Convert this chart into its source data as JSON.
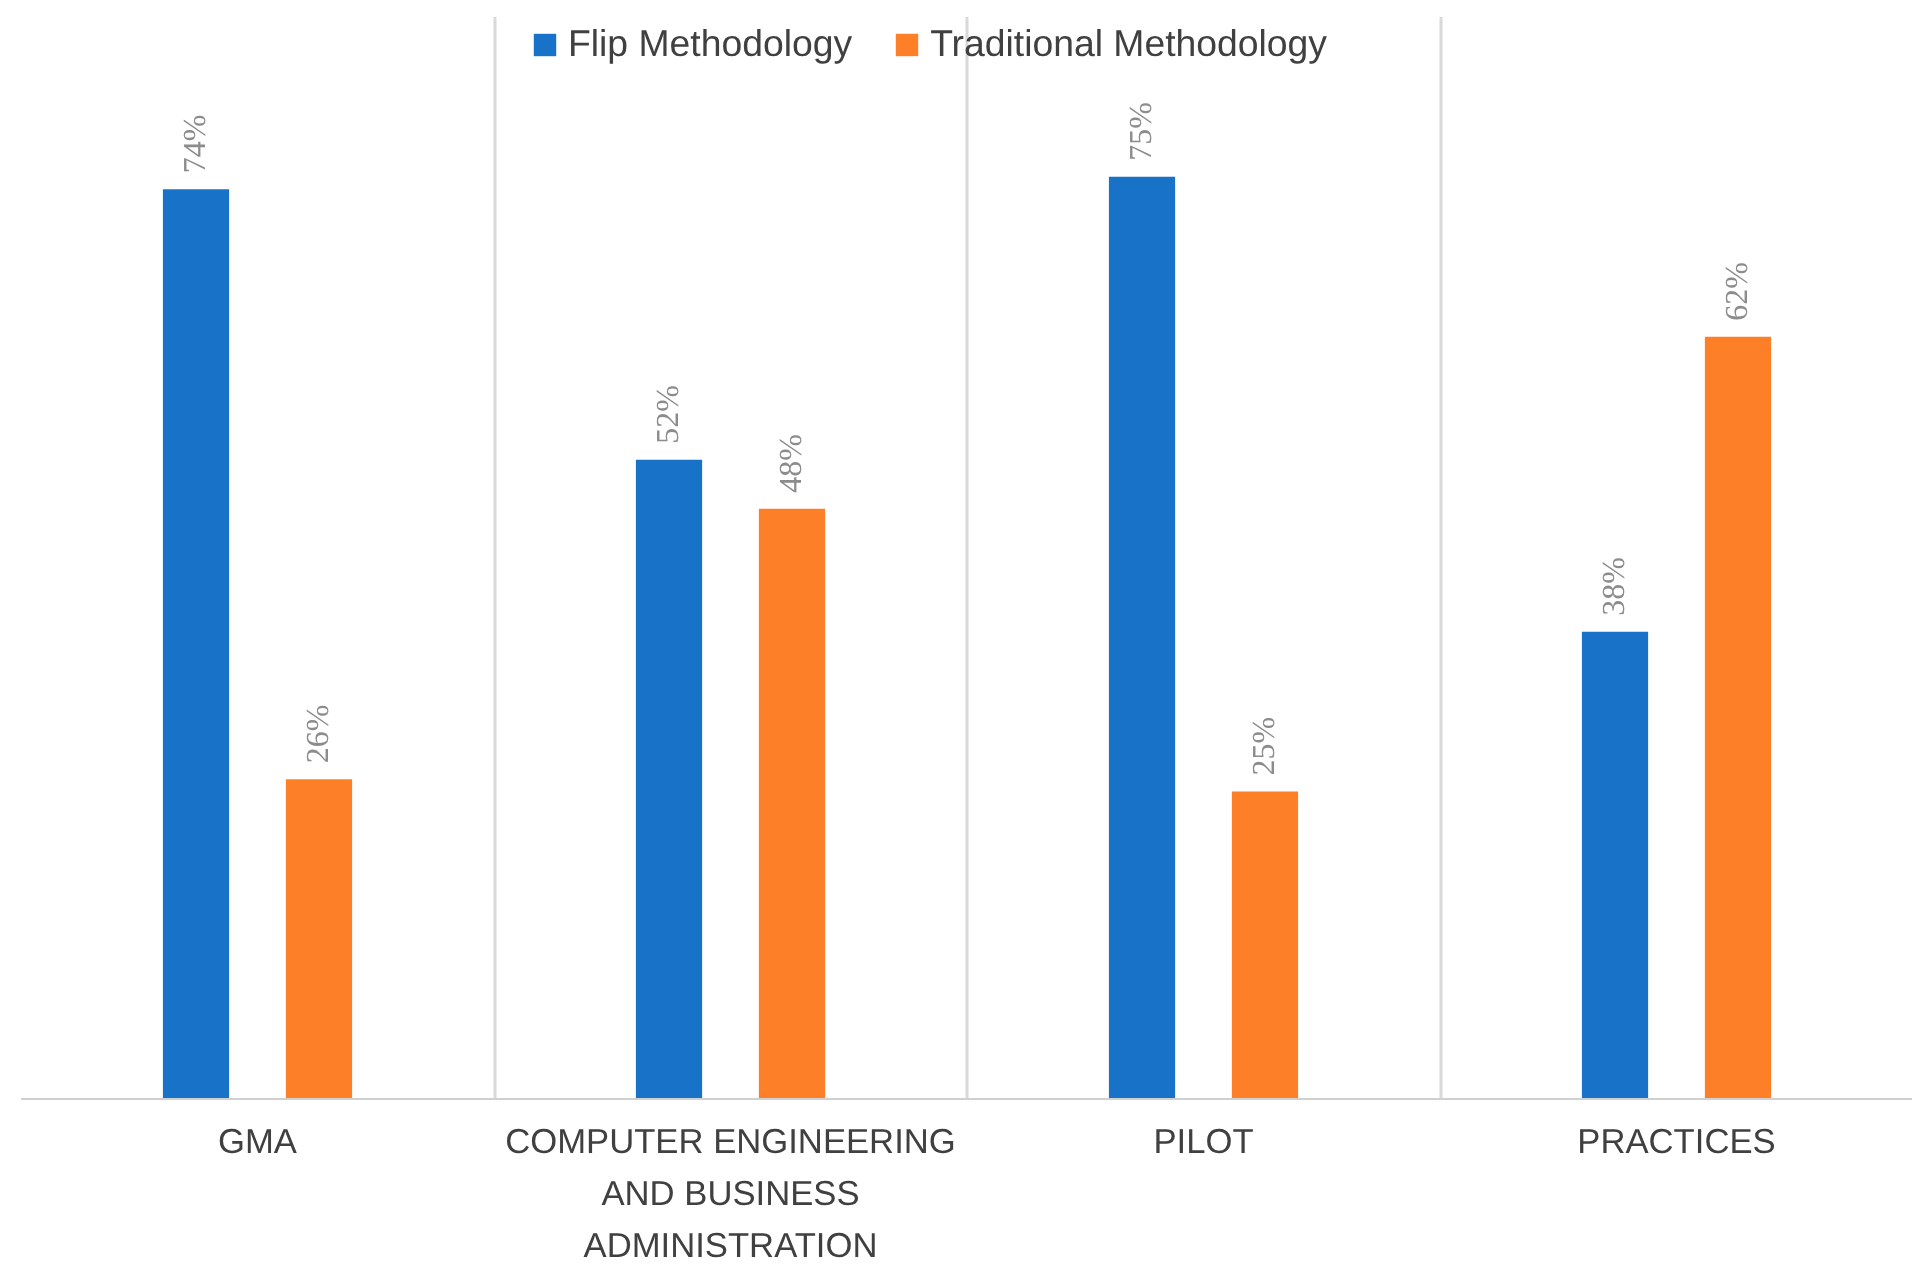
{
  "chart_data": {
    "type": "bar",
    "categories": [
      "GMA",
      "COMPUTER ENGINEERING AND BUSINESS ADMINISTRATION",
      "PILOT",
      "PRACTICES"
    ],
    "series": [
      {
        "name": "Flip Methodology",
        "color": "#1872c8",
        "values": [
          74,
          52,
          75,
          38
        ],
        "value_labels": [
          "74%",
          "52%",
          "75%",
          "38%"
        ]
      },
      {
        "name": "Traditional Methodology",
        "color": "#fd7f28",
        "values": [
          26,
          48,
          25,
          62
        ],
        "value_labels": [
          "26%",
          "48%",
          "25%",
          "62%"
        ]
      }
    ],
    "ylim": [
      0,
      88
    ],
    "tick_labels": "x",
    "grid": "x",
    "legend": "top"
  }
}
